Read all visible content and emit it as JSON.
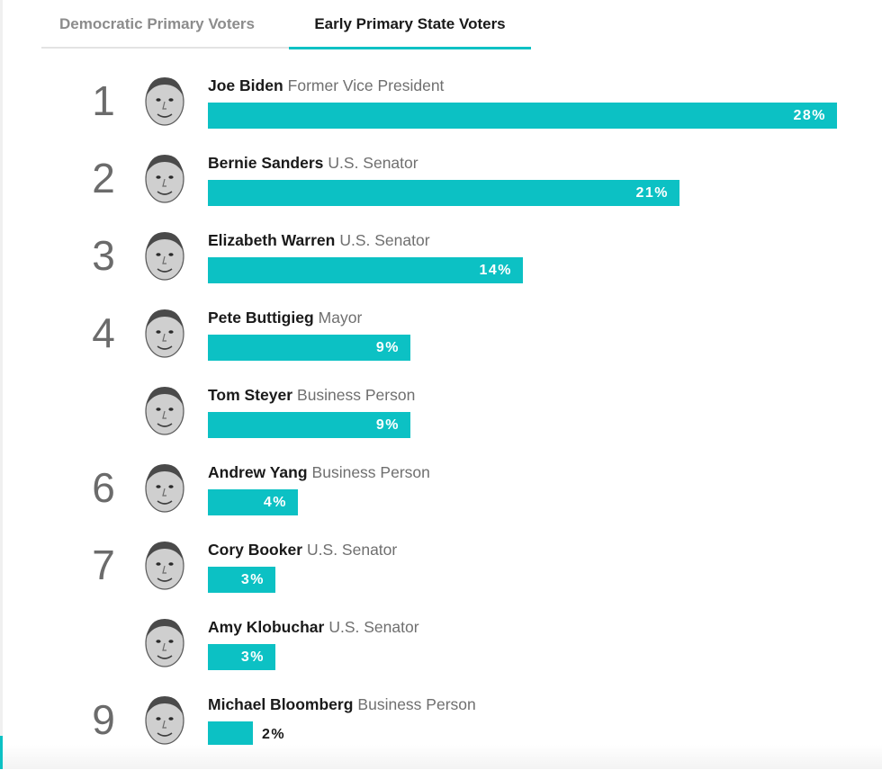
{
  "tabs": [
    {
      "label": "Democratic Primary Voters",
      "active": false
    },
    {
      "label": "Early Primary State Voters",
      "active": true
    }
  ],
  "colors": {
    "accent": "#0cc1c4",
    "rank": "#6b6b6b",
    "title": "#6f6f6f"
  },
  "chart_data": {
    "type": "bar",
    "orientation": "horizontal",
    "unit": "%",
    "categories": [
      "Joe Biden",
      "Bernie Sanders",
      "Elizabeth Warren",
      "Pete Buttigieg",
      "Tom Steyer",
      "Andrew Yang",
      "Cory Booker",
      "Amy Klobuchar",
      "Michael Bloomberg"
    ],
    "values": [
      28,
      21,
      14,
      9,
      9,
      4,
      3,
      3,
      2
    ],
    "xlim": [
      0,
      28
    ],
    "grid": false,
    "candidates": [
      {
        "rank": "1",
        "name": "Joe Biden",
        "title": "Former Vice President",
        "value": 28,
        "label": "28%",
        "avatar_icon": "candidate-portrait-icon"
      },
      {
        "rank": "2",
        "name": "Bernie Sanders",
        "title": "U.S. Senator",
        "value": 21,
        "label": "21%",
        "avatar_icon": "candidate-portrait-icon"
      },
      {
        "rank": "3",
        "name": "Elizabeth Warren",
        "title": "U.S. Senator",
        "value": 14,
        "label": "14%",
        "avatar_icon": "candidate-portrait-icon"
      },
      {
        "rank": "4",
        "name": "Pete Buttigieg",
        "title": "Mayor",
        "value": 9,
        "label": "9%",
        "avatar_icon": "candidate-portrait-icon"
      },
      {
        "rank": "",
        "name": "Tom Steyer",
        "title": "Business Person",
        "value": 9,
        "label": "9%",
        "avatar_icon": "candidate-portrait-icon"
      },
      {
        "rank": "6",
        "name": "Andrew Yang",
        "title": "Business Person",
        "value": 4,
        "label": "4%",
        "avatar_icon": "candidate-portrait-icon"
      },
      {
        "rank": "7",
        "name": "Cory Booker",
        "title": "U.S. Senator",
        "value": 3,
        "label": "3%",
        "avatar_icon": "candidate-portrait-icon"
      },
      {
        "rank": "",
        "name": "Amy Klobuchar",
        "title": "U.S. Senator",
        "value": 3,
        "label": "3%",
        "avatar_icon": "candidate-portrait-icon"
      },
      {
        "rank": "9",
        "name": "Michael Bloomberg",
        "title": "Business Person",
        "value": 2,
        "label": "2%",
        "avatar_icon": "candidate-portrait-icon"
      }
    ]
  }
}
